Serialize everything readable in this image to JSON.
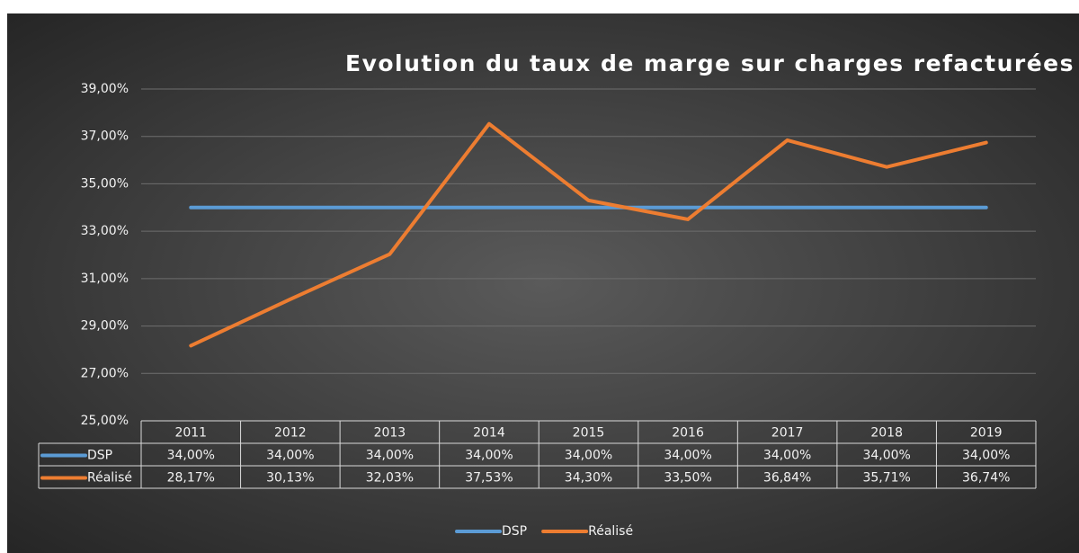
{
  "chart_data": {
    "type": "line",
    "title": "Evolution du taux de marge sur charges refacturées",
    "categories": [
      "2011",
      "2012",
      "2013",
      "2014",
      "2015",
      "2016",
      "2017",
      "2018",
      "2019"
    ],
    "series": [
      {
        "name": "DSP",
        "color": "#5b9bd5",
        "values": [
          34,
          34,
          34,
          34,
          34,
          34,
          34,
          34,
          34
        ],
        "value_labels": [
          "34,00%",
          "34,00%",
          "34,00%",
          "34,00%",
          "34,00%",
          "34,00%",
          "34,00%",
          "34,00%",
          "34,00%"
        ]
      },
      {
        "name": "Réalisé",
        "color": "#ed7d31",
        "values": [
          28.17,
          30.13,
          32.03,
          37.53,
          34.3,
          33.5,
          36.84,
          35.71,
          36.74
        ],
        "value_labels": [
          "28,17%",
          "30,13%",
          "32,03%",
          "37,53%",
          "34,30%",
          "33,50%",
          "36,84%",
          "35,71%",
          "36,74%"
        ]
      }
    ],
    "ylim": [
      25,
      39
    ],
    "yticks": [
      {
        "value": 25,
        "label": "25,00%"
      },
      {
        "value": 27,
        "label": "27,00%"
      },
      {
        "value": 29,
        "label": "29,00%"
      },
      {
        "value": 31,
        "label": "31,00%"
      },
      {
        "value": 33,
        "label": "33,00%"
      },
      {
        "value": 35,
        "label": "35,00%"
      },
      {
        "value": 37,
        "label": "37,00%"
      },
      {
        "value": 39,
        "label": "39,00%"
      }
    ],
    "grid": true,
    "legend": "bottom"
  }
}
